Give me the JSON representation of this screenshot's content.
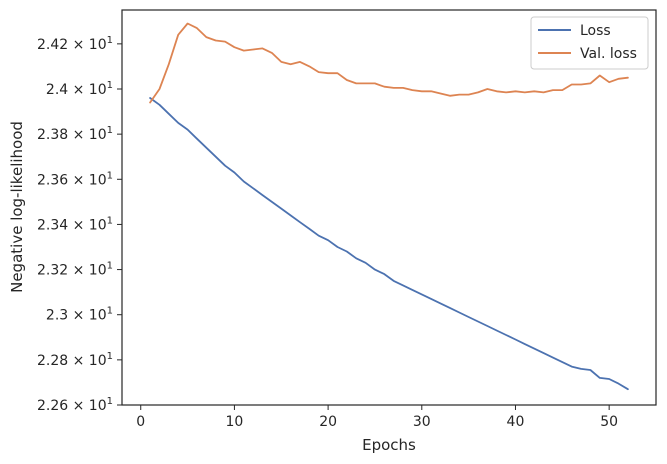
{
  "chart_data": {
    "type": "line",
    "xlabel": "Epochs",
    "ylabel": "Negative log-likelihood",
    "xlim": [
      -2,
      55
    ],
    "ylim": [
      22.6,
      24.35
    ],
    "xticks": [
      0,
      10,
      20,
      30,
      40,
      50
    ],
    "yticks": [
      {
        "value": 22.6,
        "mantissa": "2.26",
        "exponent": "1"
      },
      {
        "value": 22.8,
        "mantissa": "2.28",
        "exponent": "1"
      },
      {
        "value": 23.0,
        "mantissa": "2.3",
        "exponent": "1"
      },
      {
        "value": 23.2,
        "mantissa": "2.32",
        "exponent": "1"
      },
      {
        "value": 23.4,
        "mantissa": "2.34",
        "exponent": "1"
      },
      {
        "value": 23.6,
        "mantissa": "2.36",
        "exponent": "1"
      },
      {
        "value": 23.8,
        "mantissa": "2.38",
        "exponent": "1"
      },
      {
        "value": 24.0,
        "mantissa": "2.4",
        "exponent": "1"
      },
      {
        "value": 24.2,
        "mantissa": "2.42",
        "exponent": "1"
      }
    ],
    "ytick_base": "10",
    "ytick_times": "×",
    "grid": false,
    "legend_position": "top-right",
    "x": [
      1,
      2,
      3,
      4,
      5,
      6,
      7,
      8,
      9,
      10,
      11,
      12,
      13,
      14,
      15,
      16,
      17,
      18,
      19,
      20,
      21,
      22,
      23,
      24,
      25,
      26,
      27,
      28,
      29,
      30,
      31,
      32,
      33,
      34,
      35,
      36,
      37,
      38,
      39,
      40,
      41,
      42,
      43,
      44,
      45,
      46,
      47,
      48,
      49,
      50,
      51,
      52
    ],
    "series": [
      {
        "name": "Loss",
        "color": "#4c72b0",
        "values": [
          23.96,
          23.93,
          23.89,
          23.85,
          23.82,
          23.78,
          23.74,
          23.7,
          23.66,
          23.63,
          23.59,
          23.56,
          23.53,
          23.5,
          23.47,
          23.44,
          23.41,
          23.38,
          23.35,
          23.33,
          23.3,
          23.28,
          23.25,
          23.23,
          23.2,
          23.18,
          23.15,
          23.13,
          23.11,
          23.09,
          23.07,
          23.05,
          23.03,
          23.01,
          22.99,
          22.97,
          22.95,
          22.93,
          22.91,
          22.89,
          22.87,
          22.85,
          22.83,
          22.81,
          22.79,
          22.77,
          22.76,
          22.755,
          22.72,
          22.715,
          22.695,
          22.67
        ]
      },
      {
        "name": "Val. loss",
        "color": "#dd8452",
        "values": [
          23.94,
          24.0,
          24.11,
          24.24,
          24.29,
          24.27,
          24.23,
          24.215,
          24.21,
          24.185,
          24.17,
          24.175,
          24.18,
          24.16,
          24.12,
          24.11,
          24.12,
          24.1,
          24.075,
          24.07,
          24.07,
          24.04,
          24.025,
          24.025,
          24.025,
          24.01,
          24.005,
          24.005,
          23.995,
          23.99,
          23.99,
          23.98,
          23.97,
          23.975,
          23.975,
          23.985,
          24.0,
          23.99,
          23.985,
          23.99,
          23.985,
          23.99,
          23.985,
          23.995,
          23.995,
          24.02,
          24.02,
          24.025,
          24.06,
          24.03,
          24.045,
          24.05
        ]
      }
    ]
  }
}
